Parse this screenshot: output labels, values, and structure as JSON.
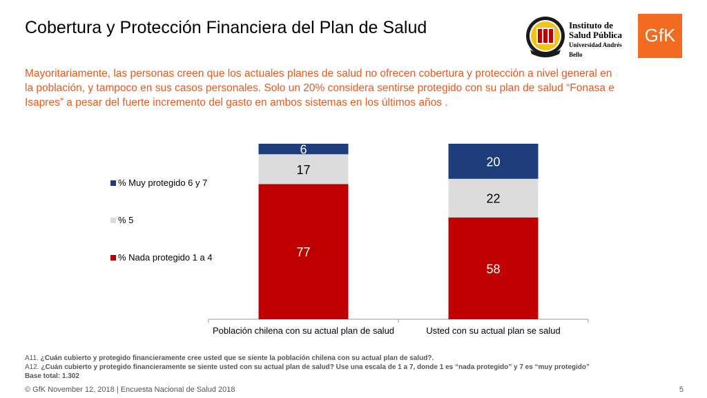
{
  "header": {
    "title": "Cobertura y Protección Financiera del Plan de Salud",
    "subtitle": "Mayoritariamente, las personas creen que los actuales planes de salud no ofrecen cobertura y protección a nivel general en la población, y tampoco en sus casos personales. Solo un 20% considera sentirse protegido con su plan de salud “Fonasa e Isapres” a pesar del fuerte incremento del gasto en ambos sistemas en los últimos años ."
  },
  "logos": {
    "isp_line1": "Instituto de",
    "isp_line2": "Salud Pública",
    "isp_line3": "Universidad Andrés Bello",
    "gfk": "GfK"
  },
  "chart_data": {
    "type": "bar",
    "stacked": true,
    "categories": [
      "Población chilena con su actual plan de salud",
      "Usted con su actual plan se salud"
    ],
    "series": [
      {
        "name": "% Nada protegido 1 a 4",
        "values": [
          77,
          58
        ],
        "color": "#c00000"
      },
      {
        "name": "% 5",
        "values": [
          17,
          22
        ],
        "color": "#dcdcdc"
      },
      {
        "name": "% Muy protegido 6 y 7",
        "values": [
          6,
          20
        ],
        "color": "#1f3d7a"
      }
    ],
    "ylim": [
      0,
      100
    ],
    "legend": "left",
    "grid": false,
    "data_labels": true
  },
  "notes": {
    "a11_prefix": "A11. ",
    "a11_text": "¿Cuán cubierto y protegido financieramente cree usted que se siente la población chilena con su actual plan de salud?.",
    "a12_prefix": "A12. ",
    "a12_text": "¿Cuán cubierto y protegido financieramente se siente usted con su actual plan de salud?   Use una escala de 1 a 7, donde 1 es “nada protegido” y 7 es “muy protegido”",
    "base": "Base total: 1.302"
  },
  "footer": {
    "text": "© GfK November 12, 2018 | Encuesta Nacional de Salud 2018",
    "page": "5"
  }
}
